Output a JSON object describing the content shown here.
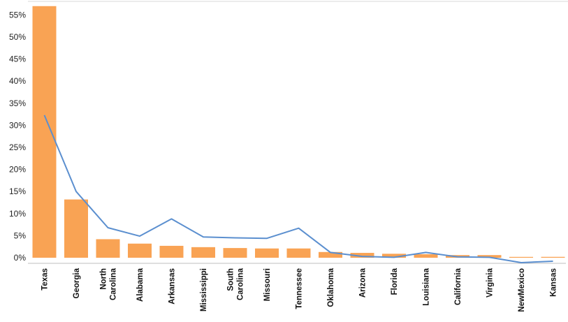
{
  "chart_data": {
    "type": "bar",
    "categories": [
      "Texas",
      "Georgia",
      "North\nCarolina",
      "Alabama",
      "Arkansas",
      "Mississippi",
      "South\nCarolina",
      "Missouri",
      "Tennessee",
      "Oklahoma",
      "Arizona",
      "Florida",
      "Louisiana",
      "California",
      "Virginia",
      "NewMexico",
      "Kansas"
    ],
    "series": [
      {
        "type": "bar",
        "values": [
          57,
          13.2,
          4.2,
          3.2,
          2.7,
          2.4,
          2.2,
          2.1,
          2.1,
          1.3,
          1.1,
          0.9,
          0.8,
          0.6,
          0.6,
          0.1,
          0.2
        ]
      },
      {
        "type": "line",
        "values": [
          32.3,
          15,
          6.8,
          4.9,
          8.8,
          4.7,
          4.5,
          4.4,
          6.7,
          1.2,
          0.3,
          0.1,
          1.2,
          0.2,
          0.1,
          -1.1,
          -0.8
        ]
      }
    ],
    "yticks": [
      "0%",
      "5%",
      "10%",
      "15%",
      "20%",
      "25%",
      "30%",
      "35%",
      "40%",
      "45%",
      "50%",
      "55%"
    ],
    "ylim": [
      0,
      57
    ],
    "colors": {
      "bar": "#F9A354",
      "line": "#5B8FCF",
      "axis": "#BFBFBF",
      "top_border": "#D9D9D9"
    }
  }
}
